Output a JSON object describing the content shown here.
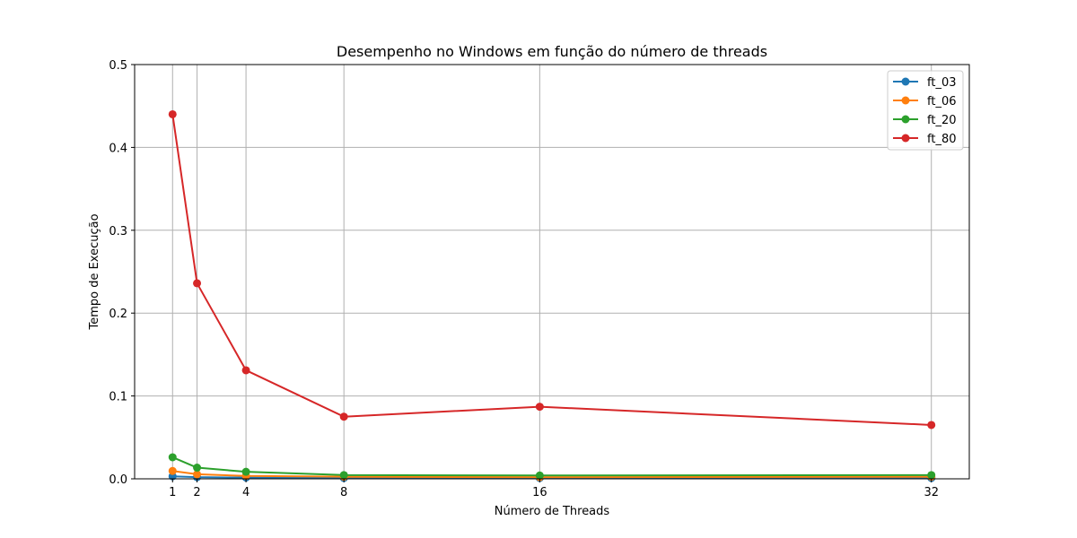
{
  "chart_data": {
    "type": "line",
    "title": "Desempenho no Windows em função do número de threads",
    "xlabel": "Número de Threads",
    "ylabel": "Tempo de Execução",
    "x": [
      1,
      2,
      4,
      8,
      16,
      32
    ],
    "xticks": [
      "1",
      "2",
      "4",
      "8",
      "16",
      "32"
    ],
    "yticks": [
      "0.0",
      "0.1",
      "0.2",
      "0.3",
      "0.4",
      "0.5"
    ],
    "xlim": [
      -0.55,
      33.55
    ],
    "ylim": [
      0,
      0.5
    ],
    "grid": true,
    "legend_position": "top-right",
    "series": [
      {
        "name": "ft_03",
        "color": "#1f77b4",
        "values": [
          0.003,
          0.002,
          0.0015,
          0.001,
          0.001,
          0.001
        ]
      },
      {
        "name": "ft_06",
        "color": "#ff7f0e",
        "values": [
          0.0095,
          0.0055,
          0.0035,
          0.0025,
          0.002,
          0.0025
        ]
      },
      {
        "name": "ft_20",
        "color": "#2ca02c",
        "values": [
          0.026,
          0.0135,
          0.0085,
          0.0045,
          0.004,
          0.0045
        ]
      },
      {
        "name": "ft_80",
        "color": "#d62728",
        "values": [
          0.44,
          0.236,
          0.131,
          0.075,
          0.087,
          0.065
        ]
      }
    ]
  }
}
